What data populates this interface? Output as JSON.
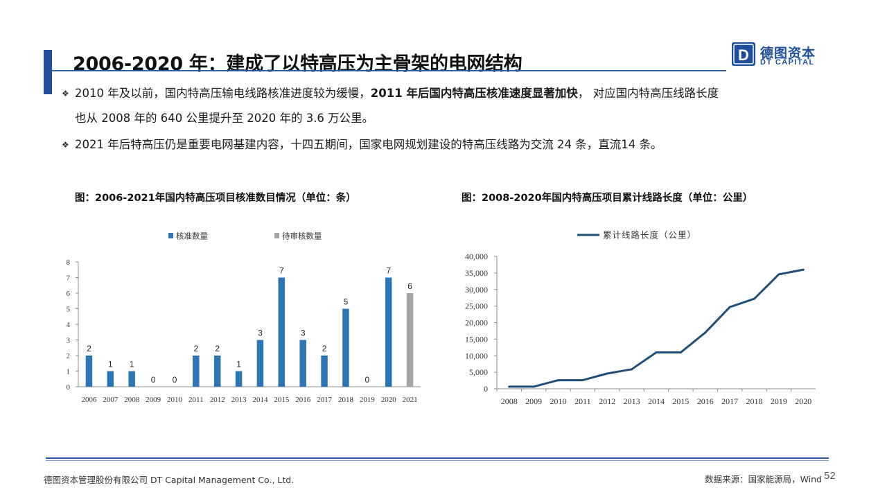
{
  "header": {
    "title": "2006-2020 年：建成了以特高压为主骨架的电网结构",
    "logo_cn": "德图资本",
    "logo_en": "DT CAPITAL",
    "logo_letter": "D",
    "brand_color": "#1f4e9c"
  },
  "bullets": [
    {
      "icon": "diamond-bullet-icon",
      "part1": "2010 年及以前，国内特高压输电线路核准进度较为缓慢，",
      "bold": "2011 年后国内特高压核准速度显著加快",
      "part2": "， 对应国内特高压线路长度",
      "line2": "也从 2008 年的 640 公里提升至 2020 年的 3.6 万公里。"
    },
    {
      "icon": "diamond-bullet-icon",
      "text": "2021 年后特高压仍是重要电网基建内容，十四五期间，国家电网规划建设的特高压线路为交流 24 条，直流14 条。"
    }
  ],
  "chart_left_title": "图：2006-2021年国内特高压项目核准数目情况（单位：条）",
  "chart_right_title": "图：2008-2020年国内特高压项目累计线路长度（单位：公里）",
  "chart_data": [
    {
      "type": "bar",
      "categories": [
        "2006",
        "2007",
        "2008",
        "2009",
        "2010",
        "2011",
        "2012",
        "2013",
        "2014",
        "2015",
        "2016",
        "2017",
        "2018",
        "2019",
        "2020",
        "2021"
      ],
      "series": [
        {
          "name": "核准数量",
          "color": "#2e75b6",
          "values": [
            2,
            1,
            1,
            0,
            0,
            2,
            2,
            1,
            3,
            7,
            3,
            2,
            5,
            0,
            7,
            null
          ]
        },
        {
          "name": "待审核数量",
          "color": "#a6a6a6",
          "values": [
            null,
            null,
            null,
            null,
            null,
            null,
            null,
            null,
            null,
            null,
            null,
            null,
            null,
            null,
            null,
            6
          ]
        }
      ],
      "ylim": [
        0,
        8
      ],
      "yticks": [
        "0",
        "1",
        "2",
        "3",
        "4",
        "5",
        "6",
        "7",
        "8"
      ],
      "legend": "top-center",
      "grid": false
    },
    {
      "type": "line",
      "x": [
        "2008",
        "2009",
        "2010",
        "2011",
        "2012",
        "2013",
        "2014",
        "2015",
        "2016",
        "2017",
        "2018",
        "2019",
        "2020"
      ],
      "series": [
        {
          "name": "累计线路长度（公里）",
          "color": "#1f4e79",
          "values": [
            640,
            640,
            2600,
            2600,
            4600,
            5900,
            11000,
            11000,
            17000,
            24700,
            27200,
            34600,
            36000
          ]
        }
      ],
      "ylim": [
        0,
        40000
      ],
      "yticks": [
        "0",
        "5,000",
        "10,000",
        "15,000",
        "20,000",
        "25,000",
        "30,000",
        "35,000",
        "40,000"
      ],
      "legend": "top-center",
      "grid": false
    }
  ],
  "footer": {
    "company": "德图资本管理股份有限公司 DT Capital Management Co., Ltd.",
    "source": "数据来源：国家能源局，Wind",
    "page": "52"
  }
}
